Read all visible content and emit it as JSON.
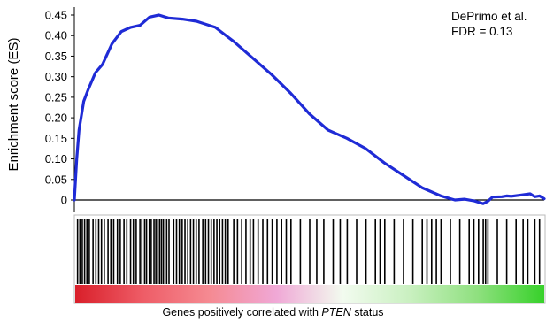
{
  "chart_data": {
    "type": "line",
    "title": "",
    "ylabel": "Enrichment score (ES)",
    "ylim": [
      0,
      0.45
    ],
    "yticks": [
      "0",
      "0.05",
      "0.10",
      "0.15",
      "0.20",
      "0.25",
      "0.30",
      "0.35",
      "0.40",
      "0.45"
    ],
    "ytick_values": [
      0,
      0.05,
      0.1,
      0.15,
      0.2,
      0.25,
      0.3,
      0.35,
      0.4,
      0.45
    ],
    "annotation": [
      "DePrimo et al.",
      "FDR = 0.13"
    ],
    "series": [
      {
        "color": "#1f2bd6",
        "x": [
          0,
          0.005,
          0.01,
          0.02,
          0.03,
          0.045,
          0.06,
          0.08,
          0.1,
          0.12,
          0.14,
          0.16,
          0.18,
          0.2,
          0.23,
          0.26,
          0.3,
          0.34,
          0.38,
          0.42,
          0.46,
          0.5,
          0.54,
          0.58,
          0.62,
          0.66,
          0.7,
          0.74,
          0.78,
          0.81,
          0.83,
          0.85,
          0.87,
          0.88,
          0.89,
          0.91,
          0.92,
          0.93,
          0.95,
          0.97,
          0.98,
          0.99,
          1.0
        ],
        "y": [
          0,
          0.1,
          0.17,
          0.24,
          0.27,
          0.31,
          0.33,
          0.38,
          0.41,
          0.42,
          0.425,
          0.445,
          0.45,
          0.443,
          0.44,
          0.435,
          0.42,
          0.385,
          0.345,
          0.305,
          0.26,
          0.21,
          0.17,
          0.15,
          0.125,
          0.09,
          0.06,
          0.03,
          0.01,
          0.0,
          0.002,
          -0.002,
          -0.009,
          -0.003,
          0.007,
          0.008,
          0.01,
          0.009,
          0.012,
          0.015,
          0.008,
          0.01,
          0.003
        ]
      }
    ],
    "hits": [
      0.005,
      0.01,
      0.015,
      0.02,
      0.025,
      0.03,
      0.038,
      0.044,
      0.05,
      0.056,
      0.062,
      0.07,
      0.076,
      0.082,
      0.09,
      0.096,
      0.104,
      0.11,
      0.118,
      0.124,
      0.13,
      0.138,
      0.142,
      0.148,
      0.152,
      0.158,
      0.162,
      0.168,
      0.172,
      0.176,
      0.18,
      0.184,
      0.188,
      0.195,
      0.2,
      0.21,
      0.216,
      0.222,
      0.228,
      0.234,
      0.24,
      0.246,
      0.252,
      0.258,
      0.264,
      0.272,
      0.278,
      0.284,
      0.29,
      0.296,
      0.302,
      0.308,
      0.314,
      0.32,
      0.326,
      0.338,
      0.346,
      0.355,
      0.364,
      0.373,
      0.38,
      0.39,
      0.4,
      0.41,
      0.42,
      0.43,
      0.44,
      0.45,
      0.46,
      0.48,
      0.5,
      0.515,
      0.53,
      0.55,
      0.565,
      0.58,
      0.6,
      0.62,
      0.64,
      0.65,
      0.66,
      0.68,
      0.7,
      0.72,
      0.74,
      0.75,
      0.76,
      0.77,
      0.78,
      0.8,
      0.82,
      0.84,
      0.85,
      0.86,
      0.87,
      0.875,
      0.88,
      0.9,
      0.92,
      0.94,
      0.955,
      0.965,
      0.98,
      0.99
    ],
    "rank_gradient": [
      "#d91f2a",
      "#ee5c66",
      "#f58a92",
      "#f0a8d6",
      "#f2fbef",
      "#c9f0c0",
      "#8fe07f",
      "#37d12a"
    ],
    "xlabel_parts": [
      "Genes positively correlated with ",
      "PTEN",
      " status"
    ]
  }
}
